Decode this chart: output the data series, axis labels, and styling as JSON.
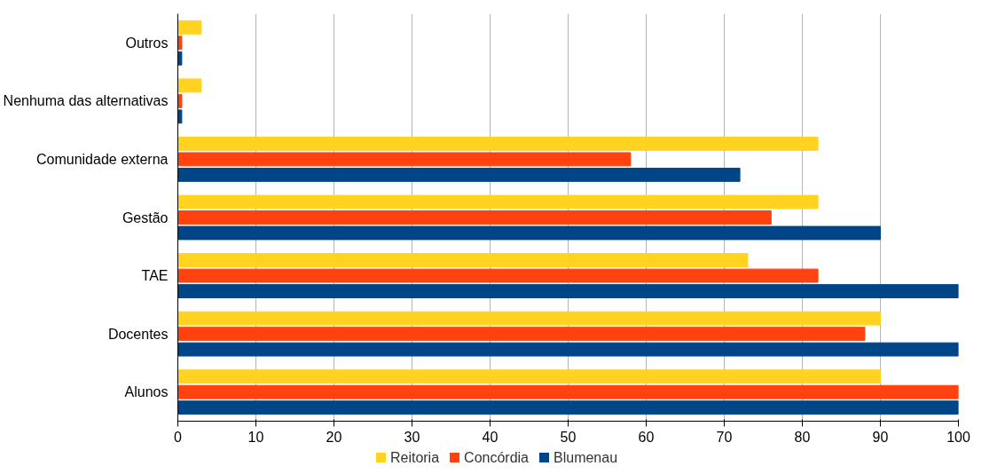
{
  "chart_data": {
    "type": "bar",
    "orientation": "horizontal",
    "categories": [
      "Outros",
      "Nenhuma das alternativas",
      "Comunidade externa",
      "Gestão",
      "TAE",
      "Docentes",
      "Alunos"
    ],
    "series": [
      {
        "name": "Reitoria",
        "color": "#ffd320",
        "values": [
          3,
          3,
          82,
          82,
          73,
          90,
          90
        ]
      },
      {
        "name": "Concórdia",
        "color": "#ff420e",
        "values": [
          0.5,
          0.5,
          58,
          76,
          82,
          88,
          100
        ]
      },
      {
        "name": "Blumenau",
        "color": "#004586",
        "values": [
          0.5,
          0.5,
          72,
          90,
          100,
          100,
          100
        ]
      }
    ],
    "xlim": [
      0,
      100
    ],
    "xticks": [
      0,
      10,
      20,
      30,
      40,
      50,
      60,
      70,
      80,
      90,
      100
    ],
    "grid": "x",
    "legend": "bottom"
  }
}
